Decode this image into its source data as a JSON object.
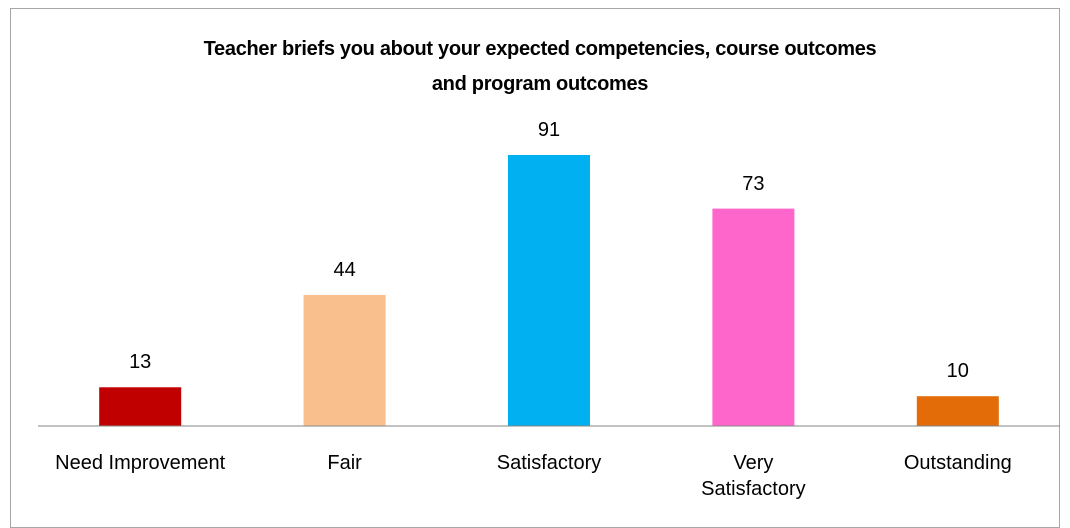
{
  "chart_data": {
    "type": "bar",
    "title": "Teacher briefs you about your expected competencies, course outcomes and program outcomes",
    "categories": [
      "Need Improvement",
      "Fair",
      "Satisfactory",
      "Very Satisfactory",
      "Outstanding"
    ],
    "values": [
      13,
      44,
      91,
      73,
      10
    ],
    "colors": [
      "#c00000",
      "#f9c08e",
      "#00b0f0",
      "#ff66cc",
      "#e36c09"
    ]
  }
}
